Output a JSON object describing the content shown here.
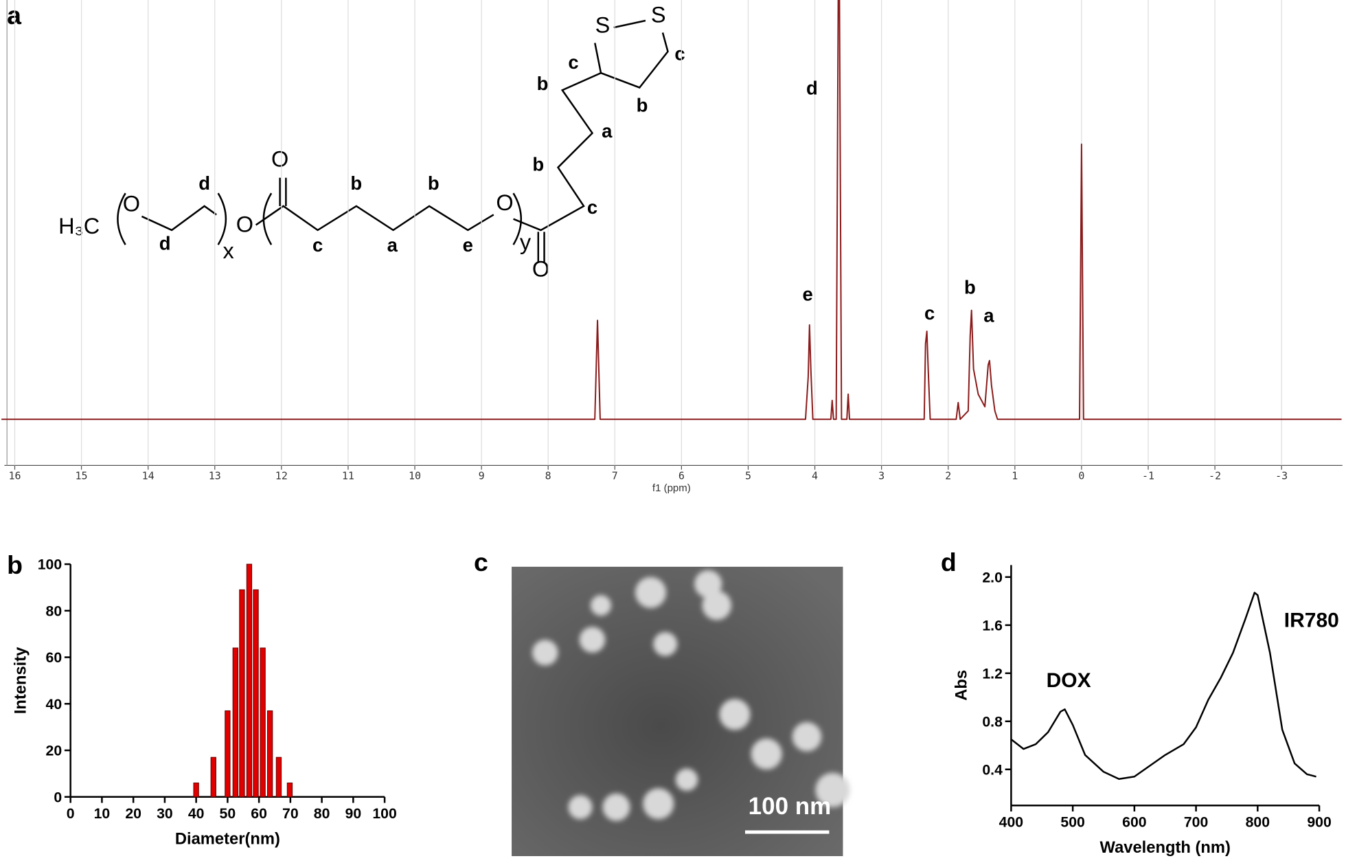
{
  "panel_labels": [
    "a",
    "b",
    "c",
    "d"
  ],
  "structure_labels": [
    "H₃C",
    "O",
    "d",
    "d",
    "x",
    "O",
    "O",
    "c",
    "b",
    "a",
    "b",
    "e",
    "O",
    "y",
    "O",
    "c",
    "b",
    "a",
    "b",
    "c",
    "b",
    "c",
    "S",
    "S"
  ],
  "micrograph": {
    "scale_bar_label": "100 nm"
  },
  "chart_data": [
    {
      "type": "line",
      "x_label": "f1 (ppm)",
      "color": "#8b1a1a",
      "grid": true,
      "x": [
        16.2,
        7.3,
        7.26,
        7.22,
        4.14,
        4.1,
        4.08,
        4.06,
        4.03,
        3.76,
        3.74,
        3.72,
        3.68,
        3.64,
        3.6,
        3.52,
        3.5,
        3.48,
        2.36,
        2.34,
        2.32,
        2.3,
        2.27,
        1.88,
        1.85,
        1.82,
        1.7,
        1.67,
        1.65,
        1.62,
        1.55,
        1.45,
        1.4,
        1.38,
        1.35,
        1.3,
        1.26,
        0.03,
        0,
        -0.03,
        -3.9
      ],
      "values": [
        0,
        0,
        23.6,
        0,
        0,
        10,
        22.5,
        12,
        0,
        0,
        4.5,
        0,
        0,
        130,
        0,
        0,
        6,
        0,
        0,
        18,
        21,
        12,
        0,
        0,
        4,
        0,
        2,
        20,
        26,
        12,
        6,
        3,
        13,
        14,
        8,
        2,
        0,
        0,
        65.6,
        0,
        0
      ],
      "xlim": [
        16.2,
        -3.9
      ],
      "xticks": [
        16,
        15,
        14,
        13,
        12,
        11,
        10,
        9,
        8,
        7,
        6,
        5,
        4,
        3,
        2,
        1,
        0,
        -1,
        -2,
        -3
      ],
      "ylim": [
        -11,
        100
      ],
      "annotations": [
        "e",
        "d",
        "c",
        "b",
        "a"
      ]
    },
    {
      "type": "bar",
      "x_label": "Diameter(nm)",
      "y_label": "Intensity",
      "color": "#e00000",
      "x": [
        40,
        45.5,
        50,
        52.5,
        54.6,
        56.9,
        59,
        61.2,
        63.5,
        66.3,
        69.8
      ],
      "values": [
        6,
        17,
        37,
        64,
        89,
        100,
        89,
        64,
        37,
        17,
        6
      ],
      "xlim": [
        0,
        100
      ],
      "xticks": [
        0,
        10,
        20,
        30,
        40,
        50,
        60,
        70,
        80,
        90,
        100
      ],
      "ylim": [
        0,
        100
      ],
      "yticks": [
        0,
        20,
        40,
        60,
        80,
        100
      ]
    },
    {
      "type": "line",
      "x_label": "Wavelength (nm)",
      "y_label": "Abs",
      "color": "#000000",
      "x": [
        400,
        420,
        440,
        460,
        480,
        487,
        500,
        520,
        550,
        575,
        600,
        650,
        680,
        700,
        720,
        740,
        760,
        780,
        795,
        800,
        820,
        840,
        860,
        880,
        895
      ],
      "values": [
        0.65,
        0.57,
        0.61,
        0.71,
        0.88,
        0.9,
        0.77,
        0.52,
        0.38,
        0.32,
        0.34,
        0.52,
        0.61,
        0.75,
        0.98,
        1.16,
        1.37,
        1.65,
        1.87,
        1.85,
        1.37,
        0.73,
        0.45,
        0.36,
        0.34
      ],
      "xlim": [
        400,
        900
      ],
      "xticks": [
        400,
        500,
        600,
        700,
        800,
        900
      ],
      "ylim": [
        0.1,
        2.1
      ],
      "yticks": [
        0.4,
        0.8,
        1.2,
        1.6,
        {
          "value": 2,
          "label": "2.0"
        }
      ],
      "annotations": [
        "DOX",
        "IR780"
      ]
    }
  ]
}
